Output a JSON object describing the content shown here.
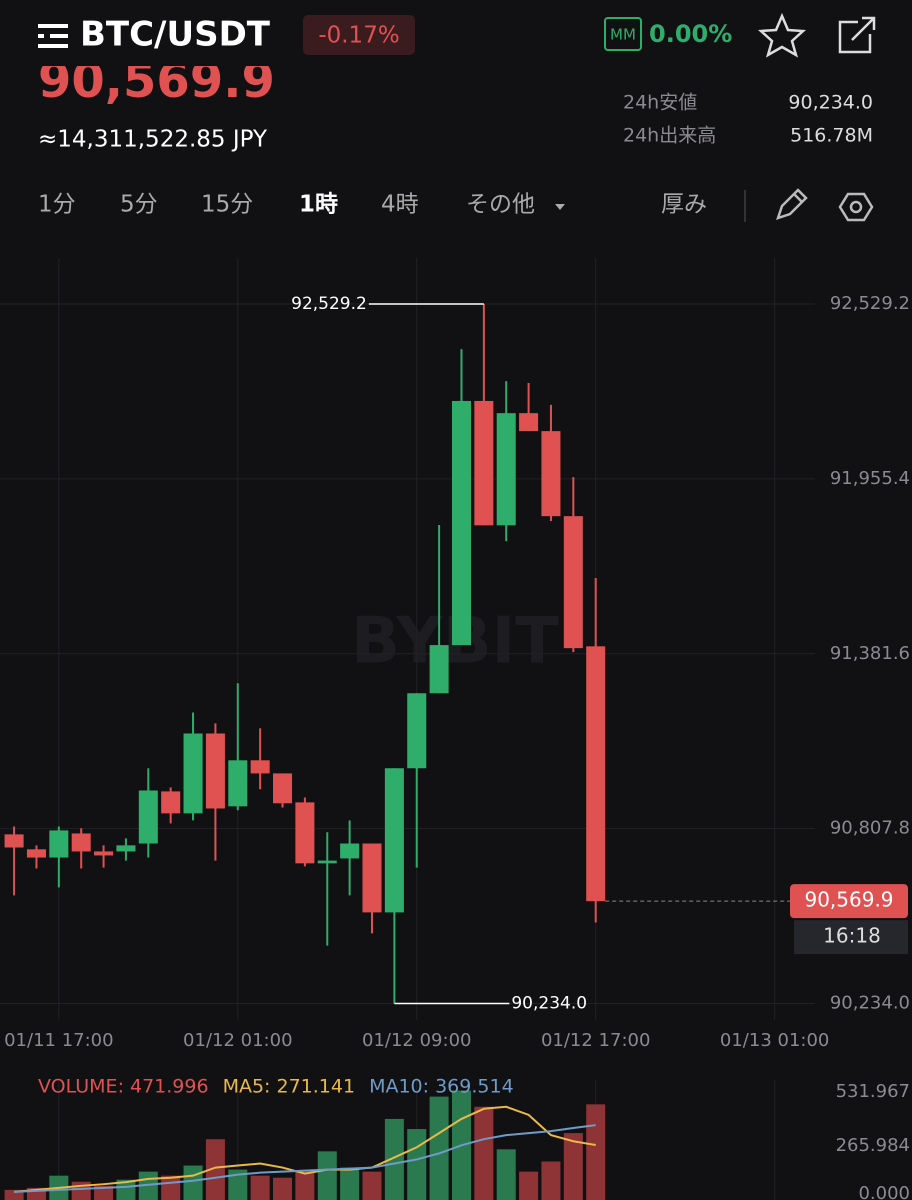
{
  "header": {
    "pair": "BTC/USDT",
    "change": "-0.17%",
    "mm_badge": "MM",
    "mm_rate": "0.00%",
    "price": "90,569.9",
    "jpy": "≈14,311,522.85 JPY",
    "stats": [
      {
        "label": "24h安値",
        "value": "90,234.0"
      },
      {
        "label": "24h出来高",
        "value": "516.78M"
      }
    ]
  },
  "timeframes": {
    "items": [
      "1分",
      "5分",
      "15分",
      "1時",
      "4時",
      "その他"
    ],
    "active": 3,
    "depth": "厚み"
  },
  "chart_data": [
    {
      "type": "candlestick",
      "watermark": "BYBIT",
      "up_color": "#2fae6b",
      "down_color": "#e05252",
      "open": [
        90789,
        90740,
        90713,
        90792,
        90733,
        90733,
        90759,
        90930,
        90858,
        91120,
        90881,
        91032,
        90989,
        90894,
        90694,
        90710,
        90759,
        90533,
        91006,
        91252,
        91410,
        92211,
        91803,
        92171,
        92112,
        91833,
        91406
      ],
      "high": [
        90815,
        90753,
        90815,
        90809,
        90753,
        90776,
        91006,
        90943,
        91189,
        91153,
        91285,
        91137,
        90989,
        90910,
        90796,
        90835,
        90759,
        91006,
        91252,
        91804,
        92381,
        92529.2,
        92276,
        92270,
        92198,
        91961,
        91630
      ],
      "low": [
        90589,
        90677,
        90615,
        90677,
        90680,
        90703,
        90713,
        90825,
        90835,
        90703,
        90868,
        90937,
        90877,
        90684,
        90424,
        90589,
        90464,
        90234.0,
        90680,
        91252,
        91410,
        91803,
        91751,
        92112,
        91817,
        91387,
        90500
      ],
      "close": [
        90746,
        90713,
        90802,
        90733,
        90720,
        90753,
        90933,
        90858,
        91120,
        90874,
        91032,
        90989,
        90891,
        90694,
        90703,
        90759,
        90533,
        91006,
        91252,
        91410,
        92211,
        91803,
        92171,
        92112,
        91833,
        91400,
        90569.9
      ],
      "xlim": [
        -0.63,
        40.14
      ],
      "xticks": [
        {
          "value": 2,
          "label": "01/11 17:00"
        },
        {
          "value": 10,
          "label": "01/12 01:00"
        },
        {
          "value": 18,
          "label": "01/12 09:00"
        },
        {
          "value": 26,
          "label": "01/12 17:00"
        },
        {
          "value": 34,
          "label": "01/13 01:00"
        }
      ],
      "ylim": [
        90180,
        92680
      ],
      "yticks": [
        {
          "value": 90234.0,
          "label": "90,234.0"
        },
        {
          "value": 90807.8,
          "label": "90,807.8"
        },
        {
          "value": 91381.6,
          "label": "91,381.6"
        },
        {
          "value": 91955.4,
          "label": "91,955.4"
        },
        {
          "value": 92529.2,
          "label": "92,529.2"
        }
      ],
      "grid": true,
      "annotations": [
        {
          "label": "92,529.2",
          "value": 92529.2,
          "x": 21
        },
        {
          "label": "90,234.0",
          "value": 90234.0,
          "x": 17
        }
      ],
      "last_price": {
        "label": "90,569.9",
        "value": 90569.9,
        "countdown": "16:18"
      }
    },
    {
      "type": "bar",
      "ylim": [
        0,
        592
      ],
      "yticks": [
        {
          "value": 0,
          "label": "0.000"
        },
        265.984,
        531.967
      ],
      "series": [
        {
          "name": "VOLUME: 471.996",
          "color": "#e05252",
          "up_color": "#2b7a4f",
          "down_color": "#8e3336",
          "values": [
            50,
            60,
            120,
            90,
            70,
            100,
            140,
            120,
            170,
            300,
            150,
            120,
            110,
            140,
            240,
            160,
            140,
            400,
            350,
            510,
            540,
            460,
            250,
            140,
            190,
            330,
            471.996
          ]
        },
        {
          "name": "MA5: 271.141",
          "color": "#e9b949",
          "values": [
            40,
            50,
            60,
            70,
            78,
            88,
            104,
            110,
            120,
            160,
            170,
            180,
            160,
            130,
            150,
            150,
            160,
            210,
            260,
            330,
            400,
            450,
            460,
            420,
            320,
            290,
            271.141
          ]
        },
        {
          "name": "MA10: 369.514",
          "color": "#6f9bc8",
          "values": [
            40,
            45,
            50,
            55,
            60,
            65,
            75,
            85,
            95,
            110,
            125,
            135,
            140,
            145,
            150,
            155,
            160,
            180,
            200,
            230,
            270,
            300,
            320,
            330,
            340,
            355,
            369.514
          ]
        }
      ]
    }
  ]
}
